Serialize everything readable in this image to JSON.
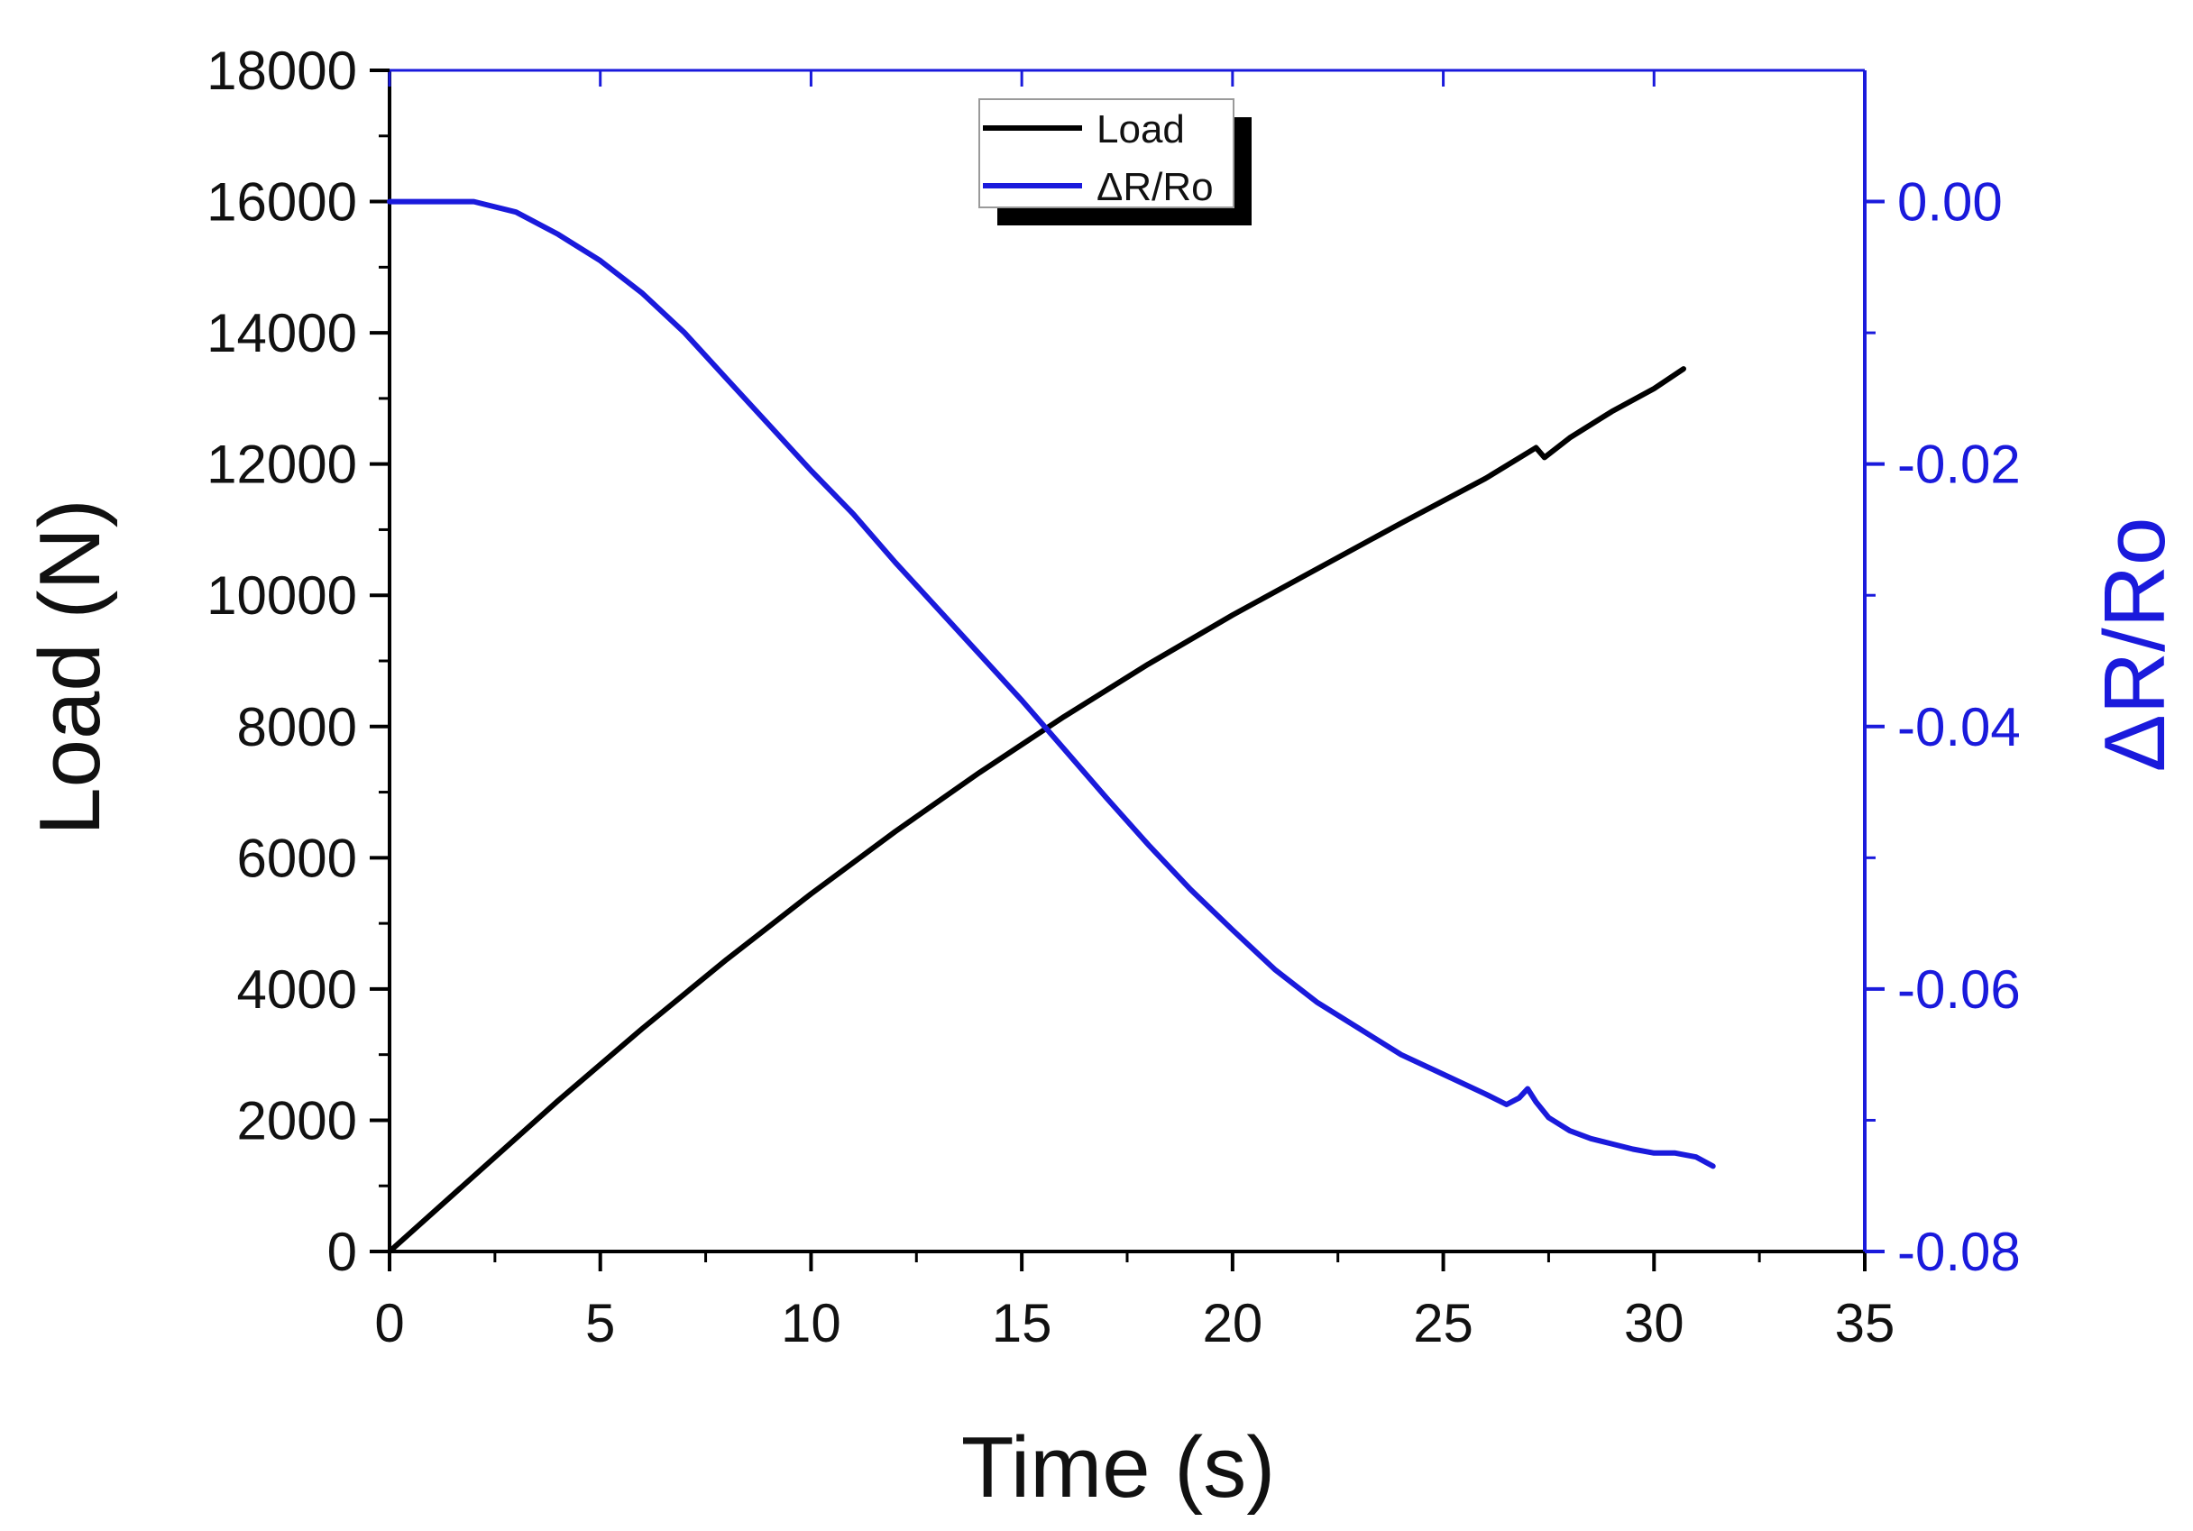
{
  "chart_data": {
    "type": "line",
    "xlabel": "Time (s)",
    "ylabel": "Load (N)",
    "y2label": "ΔR/Ro",
    "xlim": [
      0,
      35
    ],
    "ylim": [
      0,
      18000
    ],
    "y2lim": [
      -0.08,
      0.01
    ],
    "xticks": [
      0,
      5,
      10,
      15,
      20,
      25,
      30,
      35
    ],
    "yticks": [
      0,
      2000,
      4000,
      6000,
      8000,
      10000,
      12000,
      14000,
      16000,
      18000
    ],
    "y2ticks": [
      -0.08,
      -0.06,
      -0.04,
      -0.02,
      0.0
    ],
    "xtick_labels": [
      "0",
      "5",
      "10",
      "15",
      "20",
      "25",
      "30",
      "35"
    ],
    "ytick_labels": [
      "0",
      "2000",
      "4000",
      "6000",
      "8000",
      "10000",
      "12000",
      "14000",
      "16000",
      "18000"
    ],
    "y2tick_labels": [
      "-0.08",
      "-0.06",
      "-0.04",
      "-0.02",
      "0.00"
    ],
    "grid": false,
    "legend_position": "top-center",
    "series": [
      {
        "name": "Load",
        "axis": "left",
        "color": "#000000",
        "x": [
          0,
          2,
          4,
          6,
          8,
          10,
          12,
          14,
          16,
          18,
          20,
          22,
          24,
          26,
          27.2,
          27.4,
          28,
          29,
          30,
          30.7
        ],
        "y": [
          0,
          1150,
          2300,
          3400,
          4450,
          5450,
          6400,
          7300,
          8150,
          8950,
          9700,
          10400,
          11100,
          11780,
          12250,
          12100,
          12400,
          12800,
          13150,
          13450
        ]
      },
      {
        "name": "ΔR/Ro",
        "axis": "right",
        "color": "#1a1adc",
        "x": [
          0,
          1,
          2,
          3,
          4,
          5,
          6,
          7,
          8,
          9,
          10,
          11,
          12,
          13,
          14,
          15,
          16,
          17,
          18,
          19,
          20,
          21,
          22,
          23,
          24,
          25,
          26,
          26.5,
          26.8,
          27.0,
          27.2,
          27.5,
          28,
          28.5,
          29,
          29.5,
          30,
          30.5,
          31,
          31.4
        ],
        "y": [
          0.0,
          0.0,
          0.0,
          -0.0008,
          -0.0025,
          -0.0045,
          -0.007,
          -0.01,
          -0.0135,
          -0.017,
          -0.0205,
          -0.0238,
          -0.0275,
          -0.031,
          -0.0345,
          -0.038,
          -0.0417,
          -0.0454,
          -0.049,
          -0.0524,
          -0.0555,
          -0.0585,
          -0.061,
          -0.063,
          -0.065,
          -0.0665,
          -0.068,
          -0.0688,
          -0.0683,
          -0.0676,
          -0.0686,
          -0.0698,
          -0.0708,
          -0.0714,
          -0.0718,
          -0.0722,
          -0.0725,
          -0.0725,
          -0.0728,
          -0.0735
        ]
      }
    ]
  }
}
